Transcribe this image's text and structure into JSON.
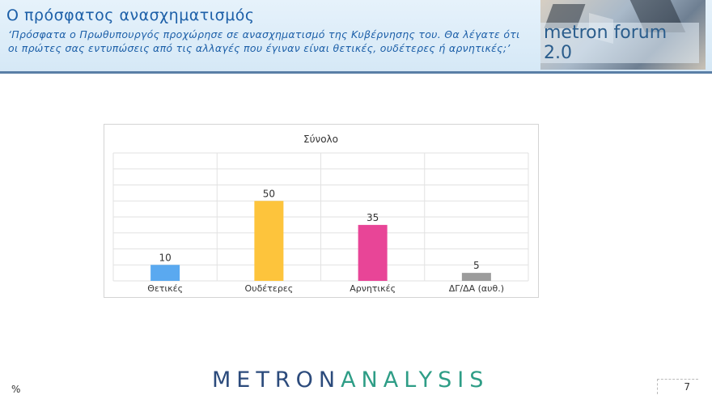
{
  "header": {
    "title": "Ο πρόσφατος ανασχηματισμός",
    "subtitle": "‘Πρόσφατα ο Πρωθυπουργός προχώρησε σε ανασχηματισμό της Κυβέρνησης του. Θα λέγατε ότι οι πρώτες σας εντυπώσεις από τις αλλαγές που έγιναν είναι θετικές, ουδέτερες ή αρνητικές;’",
    "logo_text": "metron forum 2.0"
  },
  "chart_data": {
    "type": "bar",
    "title": "Σύνολο",
    "categories": [
      "Θετικές",
      "Ουδέτερες",
      "Αρνητικές",
      "ΔΓ/ΔΑ (αυθ.)"
    ],
    "values": [
      10,
      50,
      35,
      5
    ],
    "colors": [
      "#5aa9f0",
      "#fdc43c",
      "#e84597",
      "#9c9c9c"
    ],
    "ylim": [
      0,
      80
    ],
    "grid": true,
    "xlabel": "",
    "ylabel": ""
  },
  "footer": {
    "percent_symbol": "%",
    "brand_part1": "METRON",
    "brand_part2": "ANALYSIS",
    "page_number": "7"
  }
}
